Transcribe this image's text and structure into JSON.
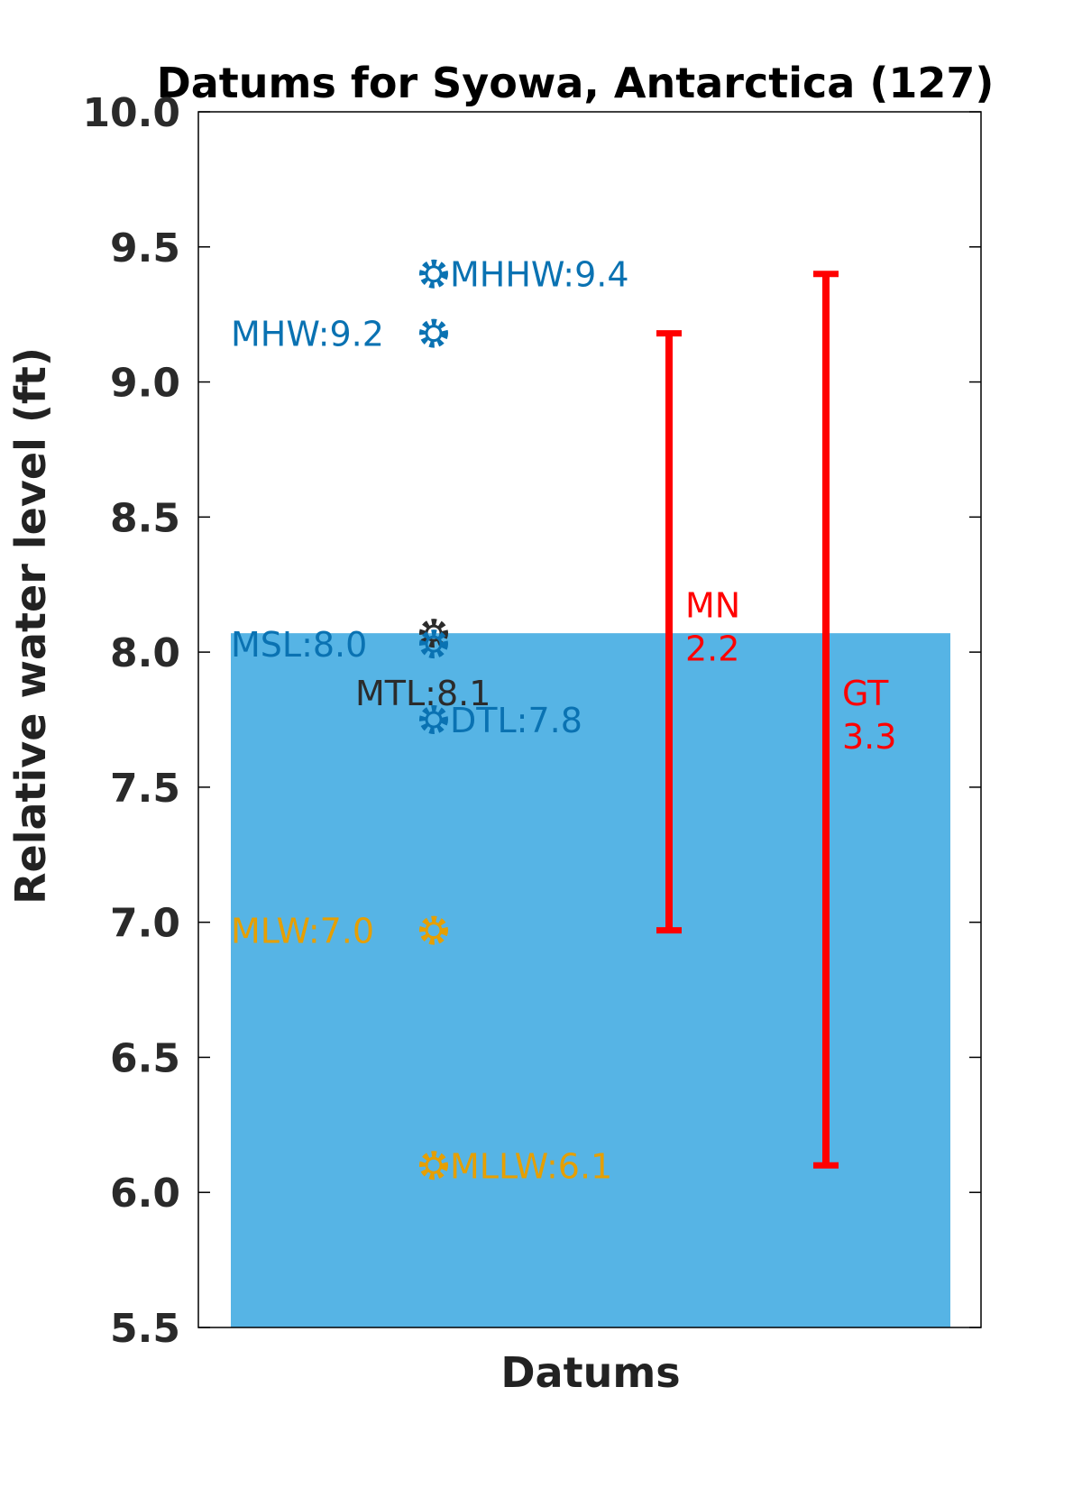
{
  "chart_data": {
    "type": "scatter",
    "title": "Datums for Syowa, Antarctica (127)",
    "xlabel": "Datums",
    "ylabel": "Relative water level (ft)",
    "ylim": [
      5.5,
      10.0
    ],
    "yticks": [
      "5.5",
      "6.0",
      "6.5",
      "7.0",
      "7.5",
      "8.0",
      "8.5",
      "9.0",
      "9.5",
      "10.0"
    ],
    "grid": false,
    "background_fill": {
      "from": 5.5,
      "to": 8.07,
      "color": "#56b4e5"
    },
    "points": [
      {
        "name": "MHHW",
        "label": "MHHW:9.4",
        "value": 9.4,
        "color": "#0a72b2",
        "label_side": "right"
      },
      {
        "name": "MHW",
        "label": "MHW:9.2",
        "value": 9.18,
        "color": "#0a72b2",
        "label_side": "left"
      },
      {
        "name": "MTL",
        "label": "MTL:8.1",
        "value": 8.07,
        "color": "#2b2b2b",
        "label_side": "below-left"
      },
      {
        "name": "MSL",
        "label": "MSL:8.0",
        "value": 8.03,
        "color": "#0a72b2",
        "label_side": "left"
      },
      {
        "name": "DTL",
        "label": "DTL:7.8",
        "value": 7.75,
        "color": "#0a72b2",
        "label_side": "right"
      },
      {
        "name": "MLW",
        "label": "MLW:7.0",
        "value": 6.97,
        "color": "#e69f00",
        "label_side": "left"
      },
      {
        "name": "MLLW",
        "label": "MLLW:6.1",
        "value": 6.1,
        "color": "#e69f00",
        "label_side": "right"
      }
    ],
    "ranges": [
      {
        "name": "MN",
        "label_line1": "MN",
        "label_line2": "2.2",
        "from": 6.97,
        "to": 9.18,
        "color": "#ff0000"
      },
      {
        "name": "GT",
        "label_line1": "GT",
        "label_line2": "3.3",
        "from": 6.1,
        "to": 9.4,
        "color": "#ff0000"
      }
    ]
  }
}
